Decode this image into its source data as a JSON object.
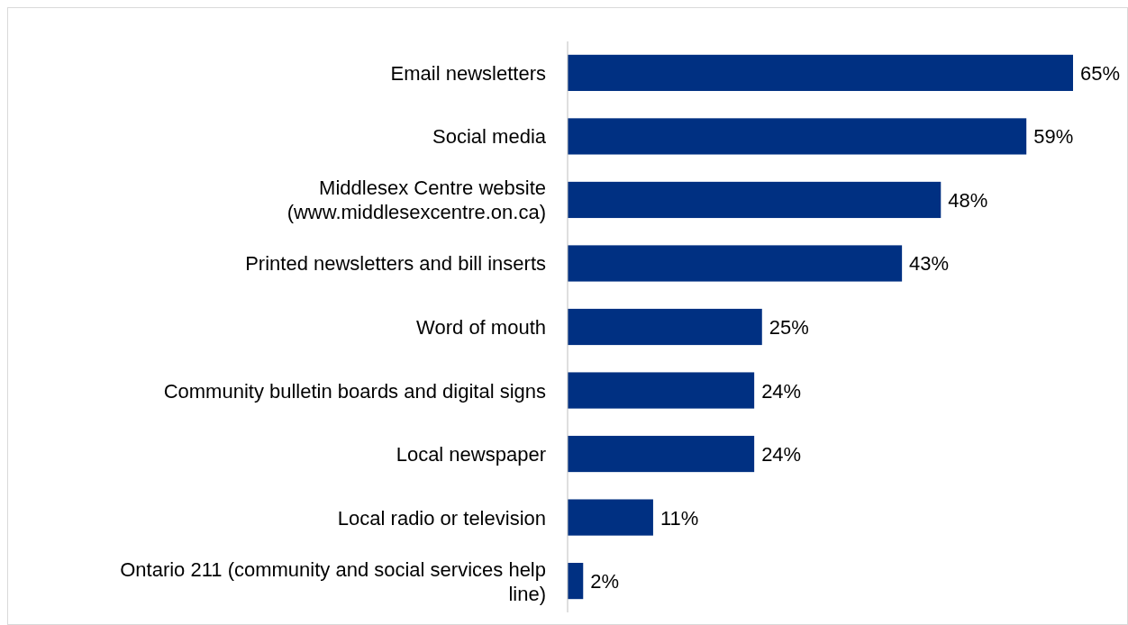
{
  "chart_data": {
    "type": "bar",
    "orientation": "horizontal",
    "categories": [
      "Email newsletters",
      "Social media",
      "Middlesex Centre website\n(www.middlesexcentre.on.ca)",
      "Printed newsletters and bill inserts",
      "Word of mouth",
      "Community bulletin boards and digital signs",
      "Local newspaper",
      "Local radio or television",
      "Ontario 211 (community and social services help\nline)"
    ],
    "values": [
      65,
      59,
      48,
      43,
      25,
      24,
      24,
      11,
      2
    ],
    "value_labels": [
      "65%",
      "59%",
      "48%",
      "43%",
      "25%",
      "24%",
      "24%",
      "11%",
      "2%"
    ],
    "color": "#003082"
  }
}
